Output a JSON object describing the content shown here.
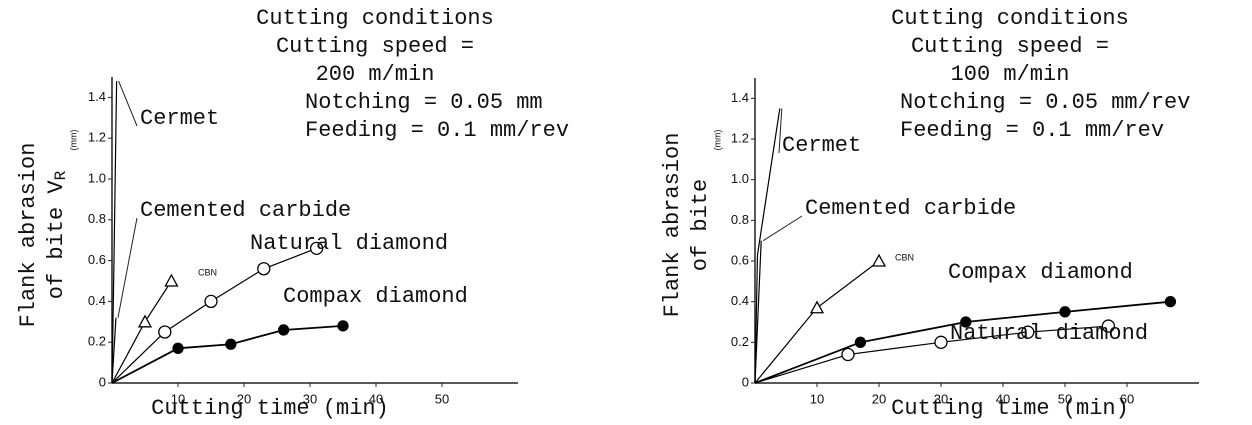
{
  "chart_data": [
    {
      "type": "line",
      "annotations": [
        "Cutting conditions",
        "Cutting speed =",
        "200 m/min",
        "Notching = 0.05 mm",
        "Feeding = 0.1 mm/rev"
      ],
      "ylabel": [
        "Flank abrasion",
        "of bite V"
      ],
      "ylabel_sub": "R",
      "y_unit": "(mm)",
      "xlabel": "Cutting time (min)",
      "xlim": [
        0,
        60
      ],
      "ylim": [
        0,
        1.5
      ],
      "xticks": [
        10,
        20,
        30,
        40,
        50
      ],
      "yticks": [
        0,
        0.2,
        0.4,
        0.6,
        0.8,
        {
          "value": 1,
          "label": "1.0"
        },
        1.2,
        1.4
      ],
      "series": [
        {
          "name": "Cermet",
          "color": "#000000",
          "marker": "none",
          "x": [
            0,
            0.3,
            0.7
          ],
          "values": [
            0,
            0.6,
            1.48
          ]
        },
        {
          "name": "Cemented carbide",
          "color": "#000000",
          "marker": "none",
          "x": [
            0,
            0.6
          ],
          "values": [
            0,
            0.32
          ]
        },
        {
          "name": "CBN",
          "color": "#000000",
          "marker": "triangle",
          "x": [
            0,
            5,
            9
          ],
          "values": [
            0,
            0.3,
            0.5
          ]
        },
        {
          "name": "Natural diamond",
          "color": "#000000",
          "marker": "open",
          "x": [
            0,
            8,
            15,
            23,
            31
          ],
          "values": [
            0,
            0.25,
            0.4,
            0.56,
            0.66
          ]
        },
        {
          "name": "Compax diamond",
          "color": "#000000",
          "marker": "filled",
          "x": [
            0,
            10,
            18,
            26,
            35
          ],
          "values": [
            0,
            0.17,
            0.19,
            0.26,
            0.28
          ]
        }
      ]
    },
    {
      "type": "line",
      "annotations": [
        "Cutting conditions",
        "Cutting speed =",
        "100 m/min",
        "Notching = 0.05 mm/rev",
        "Feeding = 0.1 mm/rev"
      ],
      "ylabel": [
        "Flank abrasion",
        "of bite"
      ],
      "y_unit": "(mm)",
      "xlabel": "Cutting time (min)",
      "xlim": [
        0,
        70
      ],
      "ylim": [
        0,
        1.5
      ],
      "xticks": [
        10,
        20,
        30,
        40,
        50,
        60
      ],
      "yticks": [
        0,
        0.2,
        0.4,
        0.6,
        0.8,
        {
          "value": 1,
          "label": "1.0"
        },
        1.2,
        1.4
      ],
      "series": [
        {
          "name": "Cermet",
          "color": "#000000",
          "marker": "none",
          "x": [
            0,
            0.4,
            4
          ],
          "values": [
            0,
            0.63,
            1.35
          ]
        },
        {
          "name": "Cemented carbide",
          "color": "#000000",
          "marker": "none",
          "x": [
            0,
            1
          ],
          "values": [
            0,
            0.7
          ]
        },
        {
          "name": "CBN",
          "color": "#000000",
          "marker": "triangle",
          "x": [
            0,
            10,
            20
          ],
          "values": [
            0,
            0.37,
            0.6
          ]
        },
        {
          "name": "Compax diamond",
          "color": "#000000",
          "marker": "filled",
          "x": [
            0,
            17,
            34,
            50,
            67
          ],
          "values": [
            0,
            0.2,
            0.3,
            0.35,
            0.4
          ]
        },
        {
          "name": "Natural diamond",
          "color": "#000000",
          "marker": "open",
          "x": [
            0,
            15,
            30,
            44,
            57
          ],
          "values": [
            0,
            0.14,
            0.2,
            0.25,
            0.28
          ]
        }
      ]
    }
  ]
}
